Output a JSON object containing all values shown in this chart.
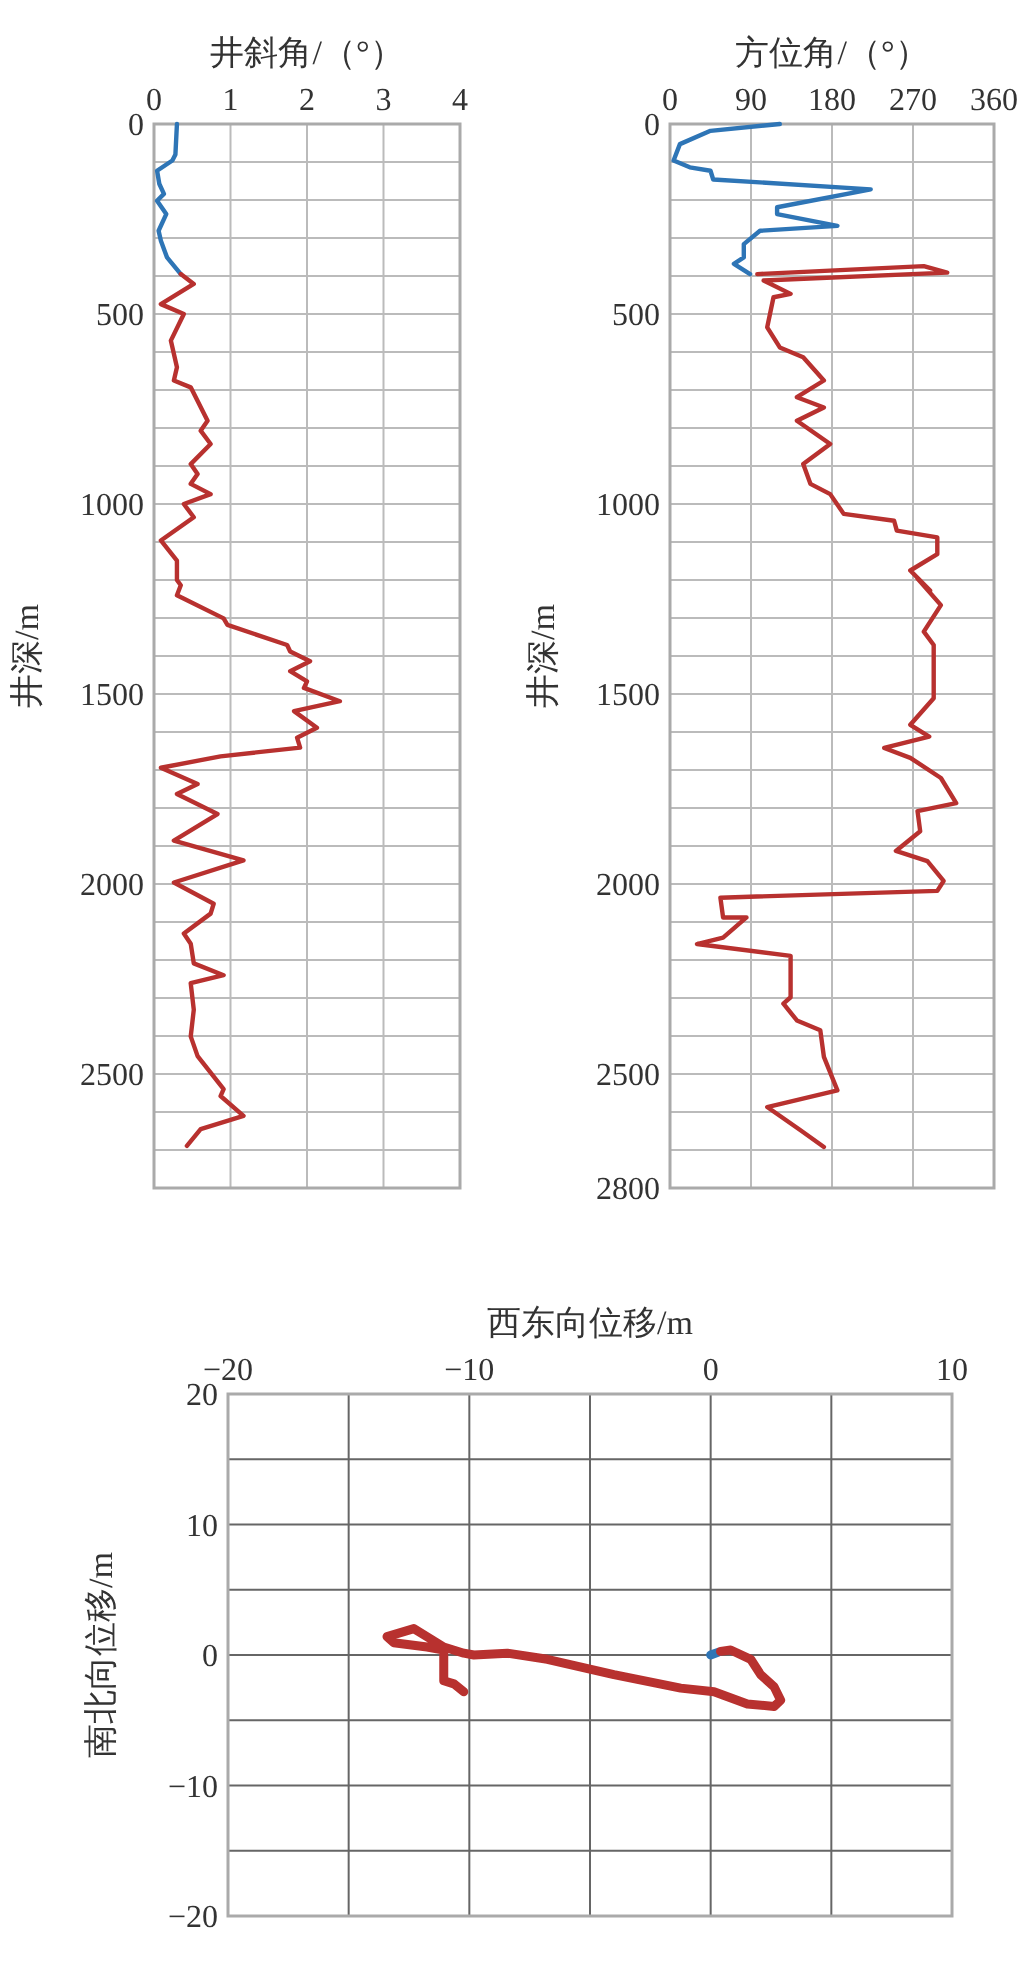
{
  "chart_data": [
    {
      "type": "line",
      "xlabel": "井斜角/（°）",
      "ylabel": "井深/m",
      "xlim": [
        0,
        4
      ],
      "xticks": [
        0,
        1,
        2,
        3,
        4
      ],
      "ylim": [
        2800,
        0
      ],
      "yticks": [
        0,
        {
          "value": 100,
          "label": null
        },
        {
          "value": 200,
          "label": null
        },
        {
          "value": 300,
          "label": null
        },
        {
          "value": 400,
          "label": null
        },
        500,
        {
          "value": 600,
          "label": null
        },
        {
          "value": 700,
          "label": null
        },
        {
          "value": 800,
          "label": null
        },
        {
          "value": 900,
          "label": null
        },
        1000,
        {
          "value": 1100,
          "label": null
        },
        {
          "value": 1200,
          "label": null
        },
        {
          "value": 1300,
          "label": null
        },
        {
          "value": 1400,
          "label": null
        },
        1500,
        {
          "value": 1600,
          "label": null
        },
        {
          "value": 1700,
          "label": null
        },
        {
          "value": 1800,
          "label": null
        },
        {
          "value": 1900,
          "label": null
        },
        2000,
        {
          "value": 2100,
          "label": null
        },
        {
          "value": 2200,
          "label": null
        },
        {
          "value": 2300,
          "label": null
        },
        {
          "value": 2400,
          "label": null
        },
        2500,
        {
          "value": 2600,
          "label": null
        },
        {
          "value": 2700,
          "label": null
        }
      ],
      "grid": true,
      "series": [
        {
          "color": "#2e75b6",
          "x": [
            0.3,
            0.28,
            0.24,
            0.04,
            0.07,
            0.13,
            0.04,
            0.16,
            0.06,
            0.09,
            0.17,
            0.35
          ],
          "values": [
            0,
            80,
            96,
            123,
            158,
            184,
            202,
            237,
            281,
            307,
            351,
            395
          ]
        },
        {
          "color": "#b8312f",
          "x": [
            0.35,
            0.52,
            0.09,
            0.39,
            0.22,
            0.3,
            0.26,
            0.48,
            0.7,
            0.61,
            0.74,
            0.48,
            0.57,
            0.48,
            0.74,
            0.39,
            0.52,
            0.09,
            0.3,
            0.3,
            0.35,
            0.3,
            0.91,
            0.96,
            1.74,
            1.78,
            2.04,
            1.78,
            2.0,
            1.96,
            2.43,
            1.83,
            2.13,
            1.87,
            1.91,
            0.87,
            0.09,
            0.57,
            0.3,
            0.83,
            0.26,
            1.17,
            0.26,
            0.78,
            0.74,
            0.39,
            0.48,
            0.52,
            0.91,
            0.48,
            0.52,
            0.48,
            0.57,
            0.91,
            0.87,
            1.17,
            0.61,
            0.43
          ],
          "values": [
            395,
            421,
            474,
            500,
            570,
            640,
            675,
            693,
            781,
            807,
            842,
            895,
            921,
            947,
            974,
            1000,
            1035,
            1096,
            1149,
            1200,
            1214,
            1240,
            1301,
            1318,
            1371,
            1388,
            1414,
            1440,
            1467,
            1484,
            1519,
            1545,
            1589,
            1615,
            1641,
            1664,
            1694,
            1737,
            1763,
            1816,
            1886,
            1938,
            1996,
            2052,
            2078,
            2130,
            2157,
            2209,
            2240,
            2261,
            2331,
            2401,
            2453,
            2540,
            2558,
            2610,
            2645,
            2689
          ]
        }
      ]
    },
    {
      "type": "line",
      "xlabel": "方位角/（°）",
      "ylabel": "井深/m",
      "xlim": [
        0,
        360
      ],
      "xticks": [
        0,
        90,
        180,
        270,
        360
      ],
      "ylim": [
        2800,
        0
      ],
      "yticks": [
        0,
        {
          "value": 100,
          "label": null
        },
        {
          "value": 200,
          "label": null
        },
        {
          "value": 300,
          "label": null
        },
        {
          "value": 400,
          "label": null
        },
        500,
        {
          "value": 600,
          "label": null
        },
        {
          "value": 700,
          "label": null
        },
        {
          "value": 800,
          "label": null
        },
        {
          "value": 900,
          "label": null
        },
        1000,
        {
          "value": 1100,
          "label": null
        },
        {
          "value": 1200,
          "label": null
        },
        {
          "value": 1300,
          "label": null
        },
        {
          "value": 1400,
          "label": null
        },
        1500,
        {
          "value": 1600,
          "label": null
        },
        {
          "value": 1700,
          "label": null
        },
        {
          "value": 1800,
          "label": null
        },
        {
          "value": 1900,
          "label": null
        },
        2000,
        {
          "value": 2100,
          "label": null
        },
        {
          "value": 2200,
          "label": null
        },
        {
          "value": 2300,
          "label": null
        },
        {
          "value": 2400,
          "label": null
        },
        2500,
        {
          "value": 2600,
          "label": null
        },
        {
          "value": 2700,
          "label": null
        },
        2800
      ],
      "grid": true,
      "series": [
        {
          "color": "#2e75b6",
          "x": [
            122,
            45,
            11,
            4,
            22,
            45,
            48,
            223,
            119,
            119,
            186,
            100,
            82,
            82,
            71,
            89
          ],
          "values": [
            0,
            18,
            53,
            96,
            114,
            123,
            146,
            172,
            219,
            237,
            268,
            281,
            316,
            351,
            368,
            395
          ]
        },
        {
          "color": "#b8312f",
          "x": [
            97,
            282,
            308,
            104,
            134,
            115,
            108,
            122,
            148,
            171,
            141,
            171,
            141,
            178,
            148,
            156,
            178,
            193,
            249,
            252,
            297,
            297,
            267,
            289,
            275,
            301,
            282,
            293,
            293,
            267,
            288,
            238,
            267,
            301,
            318,
            275,
            278,
            251,
            286,
            304,
            297,
            56,
            59,
            85,
            59,
            30,
            134,
            134,
            126,
            141,
            167,
            171,
            186,
            108,
            145,
            171
          ],
          "values": [
            395,
            374,
            391,
            412,
            447,
            456,
            535,
            588,
            614,
            675,
            719,
            746,
            781,
            842,
            895,
            947,
            974,
            1026,
            1044,
            1070,
            1088,
            1132,
            1175,
            1228,
            1196,
            1266,
            1336,
            1371,
            1511,
            1581,
            1612,
            1642,
            1668,
            1721,
            1787,
            1808,
            1861,
            1913,
            1940,
            1992,
            2018,
            2036,
            2088,
            2088,
            2141,
            2158,
            2189,
            2298,
            2315,
            2359,
            2385,
            2455,
            2543,
            2587,
            2648,
            2692
          ]
        }
      ]
    },
    {
      "type": "line",
      "xlabel": "西东向位移/m",
      "ylabel": "南北向位移/m",
      "xlim": [
        -20,
        10
      ],
      "xticks": [
        -20,
        {
          "value": -15,
          "label": null
        },
        -10,
        {
          "value": -5,
          "label": null
        },
        0,
        {
          "value": 5,
          "label": null
        },
        10
      ],
      "ylim": [
        -20,
        20
      ],
      "yticks": [
        {
          "value": -20,
          "label": "−20"
        },
        {
          "value": -15,
          "label": null
        },
        {
          "value": -10,
          "label": "−10"
        },
        {
          "value": -5,
          "label": null
        },
        0,
        {
          "value": 5,
          "label": null
        },
        10,
        {
          "value": 15,
          "label": null
        },
        20
      ],
      "grid": true,
      "series": [
        {
          "color": "#2e75b6",
          "x": [
            0,
            0.3
          ],
          "values": [
            0,
            0.2
          ]
        },
        {
          "color": "#b8312f",
          "x": [
            0.41,
            0.83,
            1.66,
            2.07,
            2.63,
            2.9,
            2.63,
            1.52,
            0.14,
            -1.24,
            -4.01,
            -6.77,
            -8.43,
            -9.81,
            -10.23,
            -11.06,
            -12.3,
            -13.41,
            -13.13,
            -11.75,
            -11.06,
            -11.06,
            -10.64,
            -10.23
          ],
          "values": [
            0.28,
            0.38,
            -0.33,
            -1.5,
            -2.44,
            -3.47,
            -3.94,
            -3.76,
            -2.82,
            -2.54,
            -1.5,
            -0.33,
            0.14,
            0,
            0.14,
            0.61,
            2.02,
            1.41,
            0.94,
            0.61,
            0.38,
            -1.97,
            -2.21,
            -2.82
          ]
        }
      ]
    }
  ]
}
